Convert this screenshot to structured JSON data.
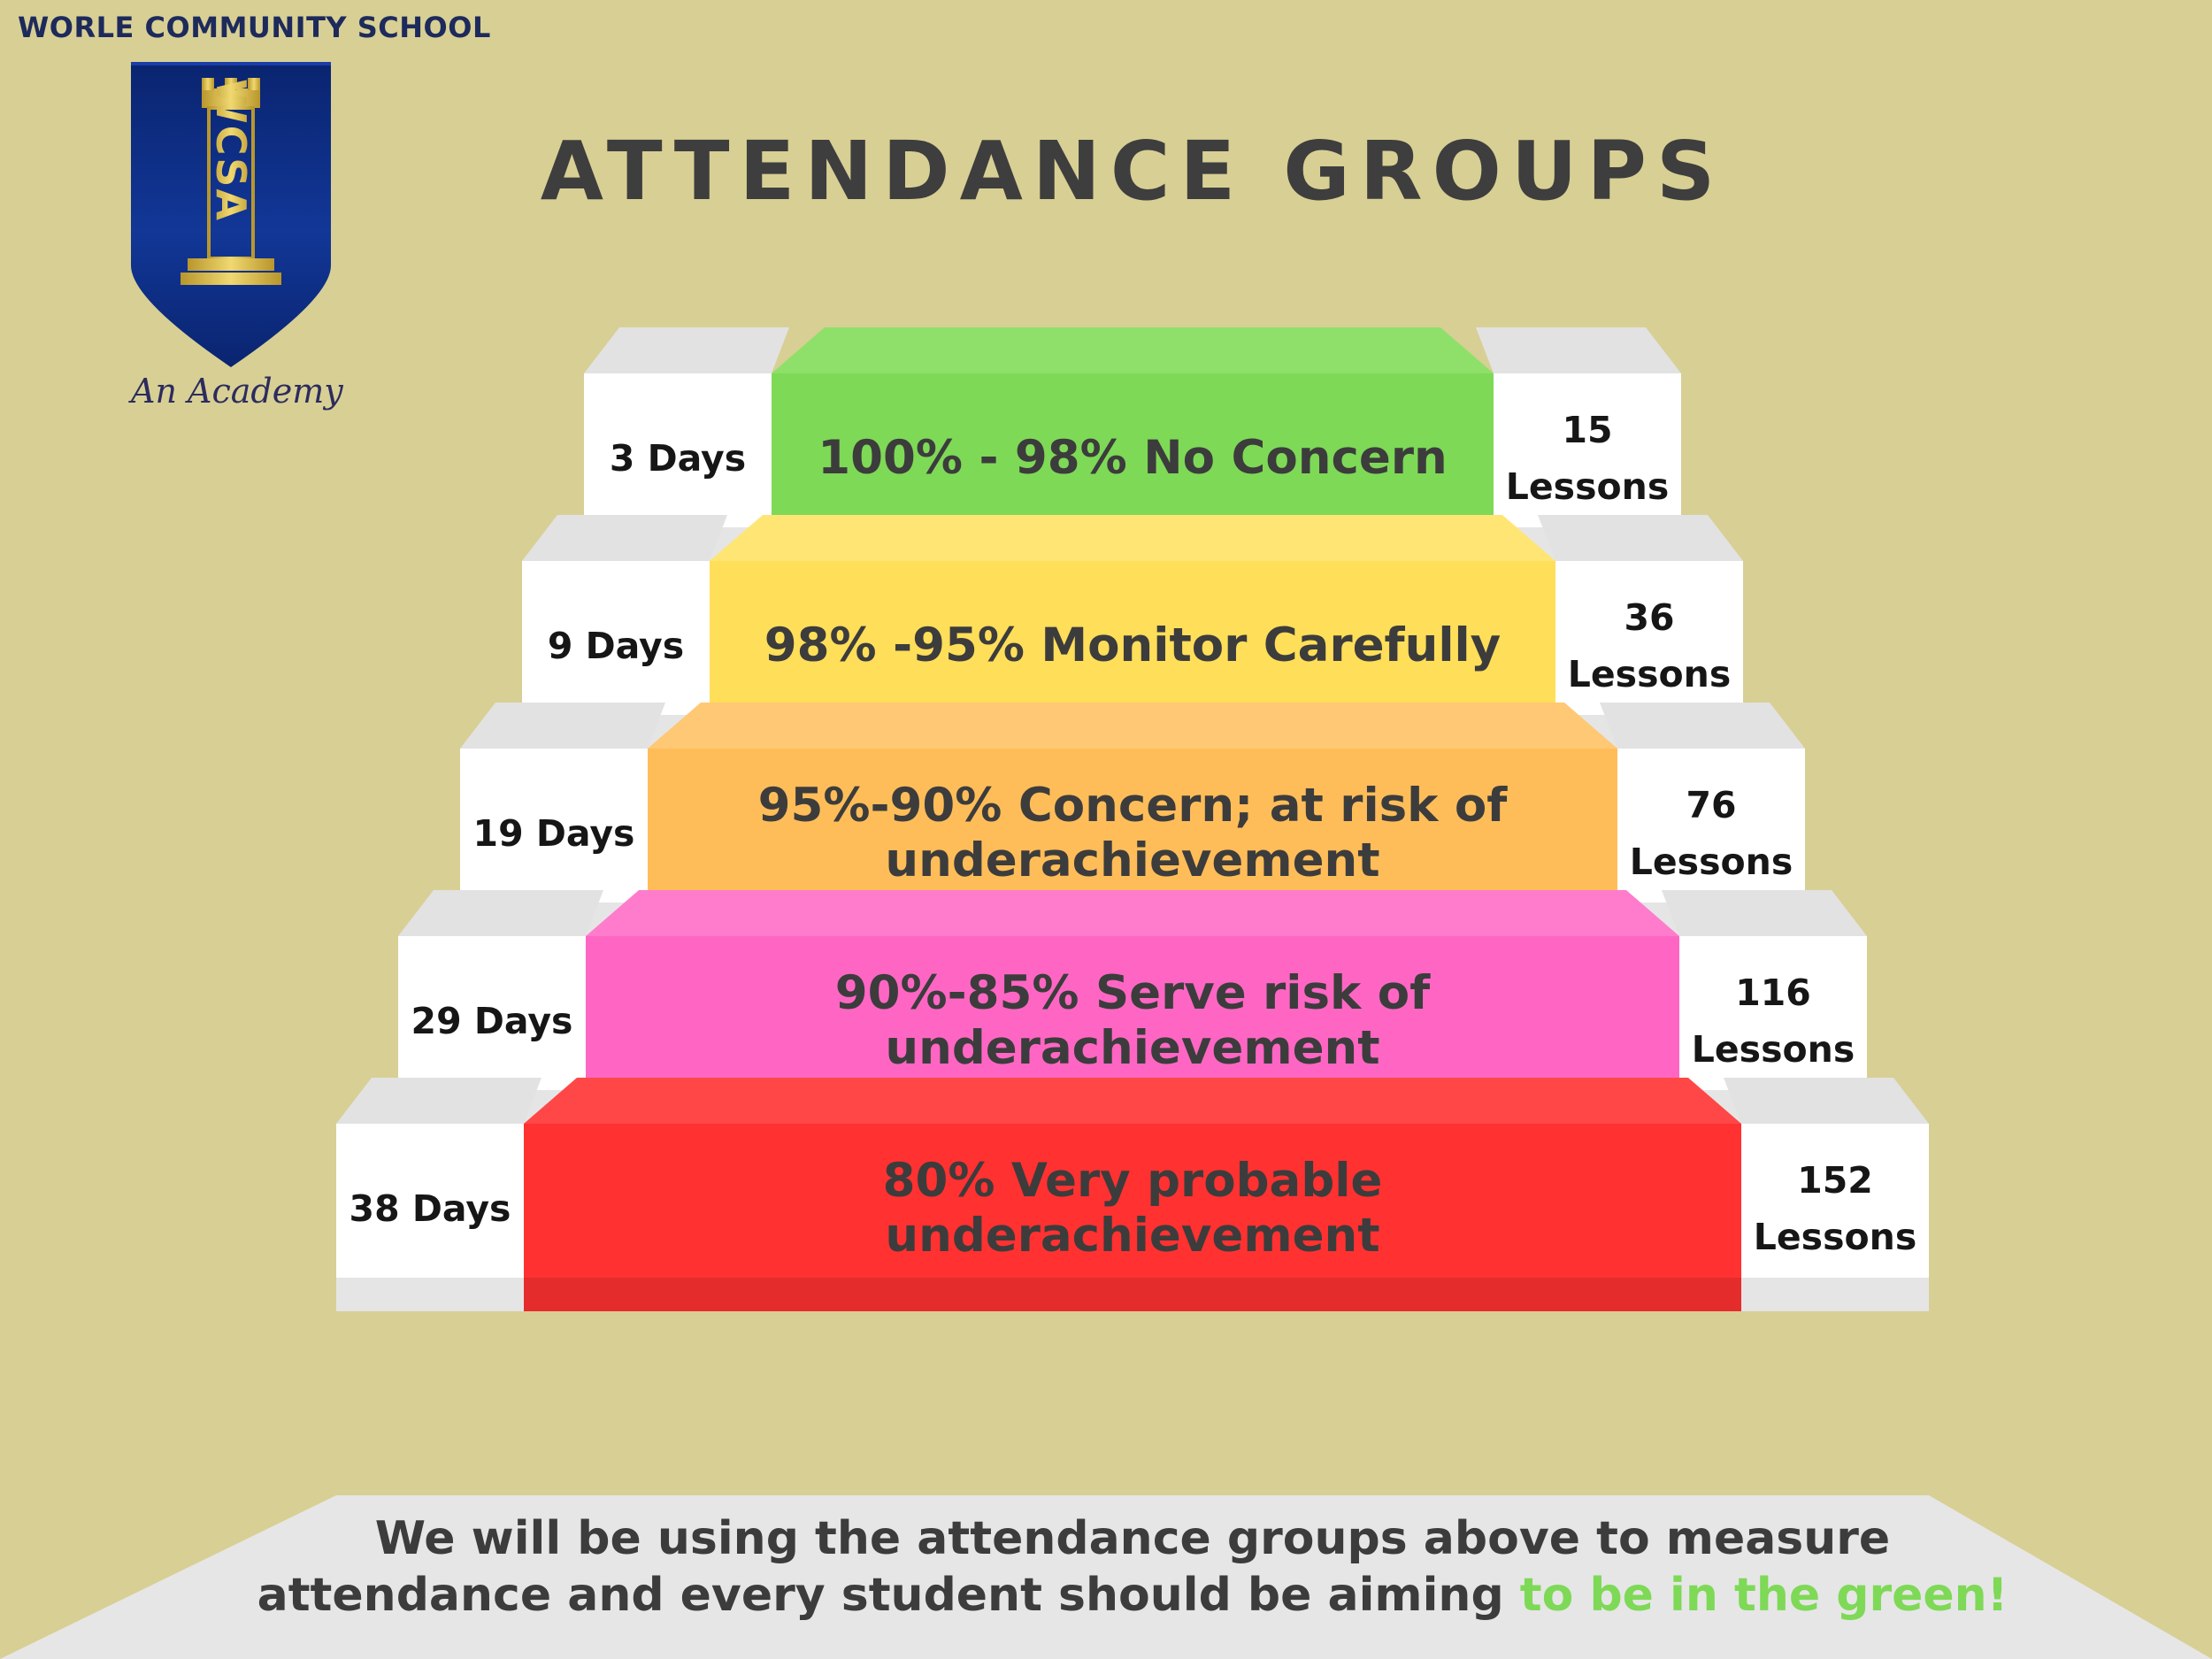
{
  "header": {
    "school_name": "WORLE COMMUNITY SCHOOL",
    "crest_letters": "WCSA",
    "tagline": "An Academy",
    "title": "ATTENDANCE GROUPS"
  },
  "colors": {
    "background": "#d8cf94",
    "crest_blue": "#0b2a80",
    "crest_gold": "#d2b43c",
    "side_face": "#ffffff",
    "step_top": "#e4e4e4"
  },
  "steps": [
    {
      "days": "3 Days",
      "lessons_number": "15",
      "lessons_word": "Lessons",
      "label_lines": [
        "100% - 98% No Concern"
      ],
      "color": "#7ed957",
      "color_top": "#8ee06a"
    },
    {
      "days": "9 Days",
      "lessons_number": "36",
      "lessons_word": "Lessons",
      "label_lines": [
        "98% -95% Monitor Carefully"
      ],
      "color": "#ffde59",
      "color_top": "#ffe574"
    },
    {
      "days": "19 Days",
      "lessons_number": "76",
      "lessons_word": "Lessons",
      "label_lines": [
        "95%-90% Concern; at risk of",
        "underachievement"
      ],
      "color": "#ffbd59",
      "color_top": "#ffc874"
    },
    {
      "days": "29 Days",
      "lessons_number": "116",
      "lessons_word": "Lessons",
      "label_lines": [
        "90%-85% Serve risk of",
        "underachievement"
      ],
      "color": "#ff66c4",
      "color_top": "#ff7ccd"
    },
    {
      "days": "38 Days",
      "lessons_number": "152",
      "lessons_word": "Lessons",
      "label_lines": [
        "80% Very probable",
        "underachievement"
      ],
      "color": "#ff3131",
      "color_top": "#ff4747"
    }
  ],
  "footer": {
    "line1": "We will be using the attendance groups above to measure",
    "line2_main": "attendance and every student  should be aiming ",
    "line2_highlight": "to be in the green!"
  }
}
